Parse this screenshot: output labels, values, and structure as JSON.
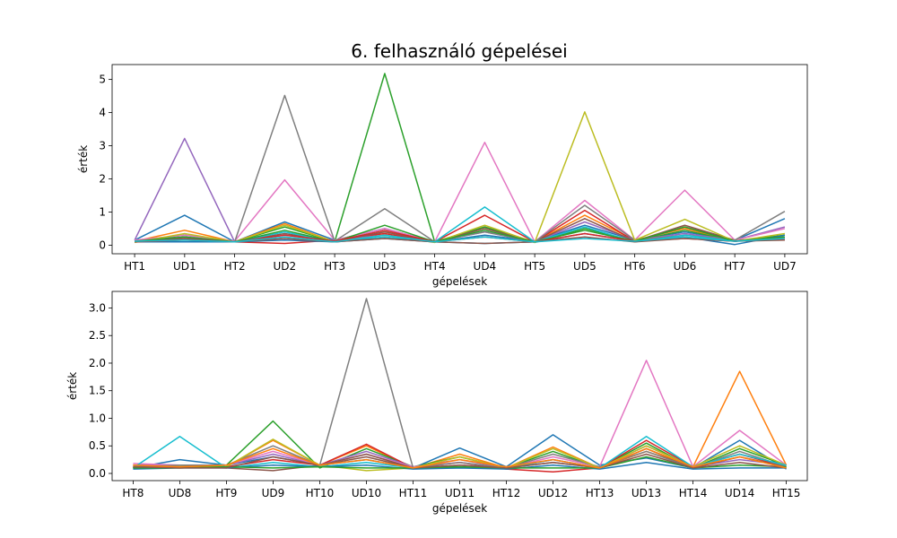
{
  "title": "6. felhasználó gépelései",
  "chart_data": [
    {
      "type": "line",
      "xlabel": "gépelések",
      "ylabel": "érték",
      "categories": [
        "HT1",
        "UD1",
        "HT2",
        "UD2",
        "HT3",
        "UD3",
        "HT4",
        "UD4",
        "HT5",
        "UD5",
        "HT6",
        "UD6",
        "HT7",
        "UD7"
      ],
      "ylim": [
        -0.26,
        5.45
      ],
      "yticks": [
        0,
        1,
        2,
        3,
        4,
        5
      ],
      "ytick_labels": [
        "0",
        "1",
        "2",
        "3",
        "4",
        "5"
      ],
      "grid": false,
      "series": [
        {
          "color": "#1f77b4",
          "values": [
            0.15,
            0.9,
            0.1,
            0.7,
            0.15,
            0.5,
            0.1,
            0.3,
            0.12,
            0.6,
            0.15,
            0.4,
            0.15,
            0.8
          ]
        },
        {
          "color": "#ff7f0e",
          "values": [
            0.12,
            0.45,
            0.1,
            0.65,
            0.1,
            0.4,
            0.1,
            0.55,
            0.1,
            0.9,
            0.15,
            0.5,
            0.12,
            0.25
          ]
        },
        {
          "color": "#2ca02c",
          "values": [
            0.1,
            0.3,
            0.1,
            0.55,
            0.1,
            5.18,
            0.1,
            0.55,
            0.08,
            0.5,
            0.12,
            0.45,
            0.12,
            0.3
          ]
        },
        {
          "color": "#d62728",
          "values": [
            0.12,
            0.2,
            0.1,
            0.05,
            0.15,
            0.35,
            0.1,
            0.9,
            0.1,
            1.05,
            0.12,
            0.55,
            0.15,
            0.15
          ]
        },
        {
          "color": "#9467bd",
          "values": [
            0.15,
            3.22,
            0.1,
            0.3,
            0.15,
            0.3,
            0.1,
            0.4,
            0.1,
            0.7,
            0.15,
            0.35,
            0.15,
            0.55
          ]
        },
        {
          "color": "#8c564b",
          "values": [
            0.1,
            0.25,
            0.1,
            0.35,
            0.12,
            0.4,
            0.1,
            0.5,
            0.1,
            0.8,
            0.12,
            0.6,
            0.15,
            0.2
          ]
        },
        {
          "color": "#e377c2",
          "values": [
            0.15,
            0.3,
            0.12,
            1.97,
            0.15,
            0.5,
            0.1,
            3.1,
            0.1,
            1.35,
            0.15,
            1.66,
            0.15,
            0.5
          ]
        },
        {
          "color": "#7f7f7f",
          "values": [
            0.12,
            0.2,
            0.1,
            4.52,
            0.12,
            1.1,
            0.1,
            0.4,
            0.1,
            1.2,
            0.15,
            0.3,
            0.15,
            1.02
          ]
        },
        {
          "color": "#bcbd22",
          "values": [
            0.08,
            0.35,
            0.1,
            0.6,
            0.1,
            0.3,
            0.08,
            0.6,
            0.08,
            4.02,
            0.15,
            0.78,
            0.12,
            0.35
          ]
        },
        {
          "color": "#17becf",
          "values": [
            0.1,
            0.15,
            0.1,
            0.4,
            0.1,
            0.25,
            0.1,
            1.15,
            0.1,
            0.55,
            0.1,
            0.3,
            0.12,
            0.25
          ]
        },
        {
          "color": "#1f77b4",
          "values": [
            0.1,
            0.1,
            0.1,
            0.15,
            0.1,
            0.2,
            0.1,
            0.05,
            0.1,
            0.35,
            0.12,
            0.25,
            0.02,
            0.3
          ]
        },
        {
          "color": "#2ca02c",
          "values": [
            0.12,
            0.25,
            0.1,
            0.45,
            0.1,
            0.6,
            0.1,
            0.45,
            0.1,
            0.45,
            0.12,
            0.55,
            0.12,
            0.25
          ]
        },
        {
          "color": "#d62728",
          "values": [
            0.1,
            0.15,
            0.1,
            0.3,
            0.12,
            0.45,
            0.1,
            0.25,
            0.1,
            0.35,
            0.12,
            0.2,
            0.12,
            0.2
          ]
        },
        {
          "color": "#8c564b",
          "values": [
            0.1,
            0.2,
            0.1,
            0.2,
            0.1,
            0.2,
            0.1,
            0.05,
            0.1,
            0.25,
            0.1,
            0.2,
            0.12,
            0.15
          ]
        },
        {
          "color": "#17becf",
          "values": [
            0.12,
            0.15,
            0.1,
            0.25,
            0.1,
            0.3,
            0.1,
            0.25,
            0.1,
            0.2,
            0.12,
            0.25,
            0.12,
            0.2
          ]
        }
      ]
    },
    {
      "type": "line",
      "xlabel": "gépelések",
      "ylabel": "érték",
      "categories": [
        "HT8",
        "UD8",
        "HT9",
        "UD9",
        "HT10",
        "UD10",
        "HT11",
        "UD11",
        "HT12",
        "UD12",
        "HT13",
        "UD13",
        "HT14",
        "UD14",
        "HT15"
      ],
      "ylim": [
        -0.13,
        3.3
      ],
      "yticks": [
        0,
        0.5,
        1.0,
        1.5,
        2.0,
        2.5,
        3.0
      ],
      "ytick_labels": [
        "0.0",
        "0.5",
        "1.0",
        "1.5",
        "2.0",
        "2.5",
        "3.0"
      ],
      "grid": false,
      "series": [
        {
          "color": "#1f77b4",
          "values": [
            0.1,
            0.25,
            0.15,
            0.3,
            0.15,
            0.25,
            0.1,
            0.46,
            0.12,
            0.7,
            0.15,
            0.28,
            0.1,
            0.6,
            0.08
          ]
        },
        {
          "color": "#ff7f0e",
          "values": [
            0.12,
            0.15,
            0.12,
            0.6,
            0.15,
            0.5,
            0.1,
            0.35,
            0.1,
            0.48,
            0.1,
            0.4,
            0.12,
            1.85,
            0.15
          ]
        },
        {
          "color": "#2ca02c",
          "values": [
            0.15,
            0.12,
            0.15,
            0.95,
            0.1,
            0.45,
            0.12,
            0.3,
            0.1,
            0.4,
            0.1,
            0.55,
            0.1,
            0.45,
            0.15
          ]
        },
        {
          "color": "#d62728",
          "values": [
            0.12,
            0.1,
            0.12,
            0.25,
            0.15,
            0.53,
            0.1,
            0.2,
            0.08,
            0.03,
            0.1,
            0.6,
            0.12,
            0.35,
            0.12
          ]
        },
        {
          "color": "#9467bd",
          "values": [
            0.15,
            0.15,
            0.15,
            0.35,
            0.15,
            0.4,
            0.12,
            0.25,
            0.1,
            0.25,
            0.1,
            0.5,
            0.12,
            0.25,
            0.15
          ]
        },
        {
          "color": "#8c564b",
          "values": [
            0.1,
            0.12,
            0.1,
            0.05,
            0.15,
            0.3,
            0.1,
            0.15,
            0.1,
            0.2,
            0.1,
            0.45,
            0.1,
            0.3,
            0.12
          ]
        },
        {
          "color": "#e377c2",
          "values": [
            0.18,
            0.15,
            0.15,
            0.4,
            0.15,
            0.35,
            0.12,
            0.2,
            0.1,
            0.3,
            0.12,
            2.05,
            0.12,
            0.78,
            0.15
          ]
        },
        {
          "color": "#7f7f7f",
          "values": [
            0.12,
            0.15,
            0.15,
            0.5,
            0.15,
            3.17,
            0.1,
            0.2,
            0.1,
            0.35,
            0.12,
            0.4,
            0.1,
            0.4,
            0.12
          ]
        },
        {
          "color": "#bcbd22",
          "values": [
            0.1,
            0.12,
            0.12,
            0.62,
            0.15,
            0.05,
            0.1,
            0.3,
            0.1,
            0.45,
            0.1,
            0.5,
            0.12,
            0.5,
            0.15
          ]
        },
        {
          "color": "#17becf",
          "values": [
            0.1,
            0.67,
            0.1,
            0.2,
            0.12,
            0.2,
            0.1,
            0.1,
            0.1,
            0.25,
            0.1,
            0.67,
            0.12,
            0.35,
            0.15
          ]
        },
        {
          "color": "#1f77b4",
          "values": [
            0.08,
            0.1,
            0.1,
            0.15,
            0.12,
            0.15,
            0.08,
            0.1,
            0.08,
            0.15,
            0.08,
            0.2,
            0.08,
            0.1,
            0.1
          ]
        },
        {
          "color": "#2ca02c",
          "values": [
            0.1,
            0.1,
            0.12,
            0.1,
            0.12,
            0.1,
            0.1,
            0.12,
            0.1,
            0.1,
            0.1,
            0.3,
            0.1,
            0.15,
            0.12
          ]
        },
        {
          "color": "#8c564b",
          "values": [
            0.12,
            0.1,
            0.1,
            0.3,
            0.15,
            0.35,
            0.1,
            0.15,
            0.1,
            0.2,
            0.1,
            0.35,
            0.1,
            0.2,
            0.1
          ]
        },
        {
          "color": "#ff7f0e",
          "values": [
            0.15,
            0.12,
            0.15,
            0.45,
            0.15,
            0.25,
            0.1,
            0.25,
            0.12,
            0.25,
            0.1,
            0.45,
            0.12,
            0.3,
            0.1
          ]
        }
      ]
    }
  ]
}
